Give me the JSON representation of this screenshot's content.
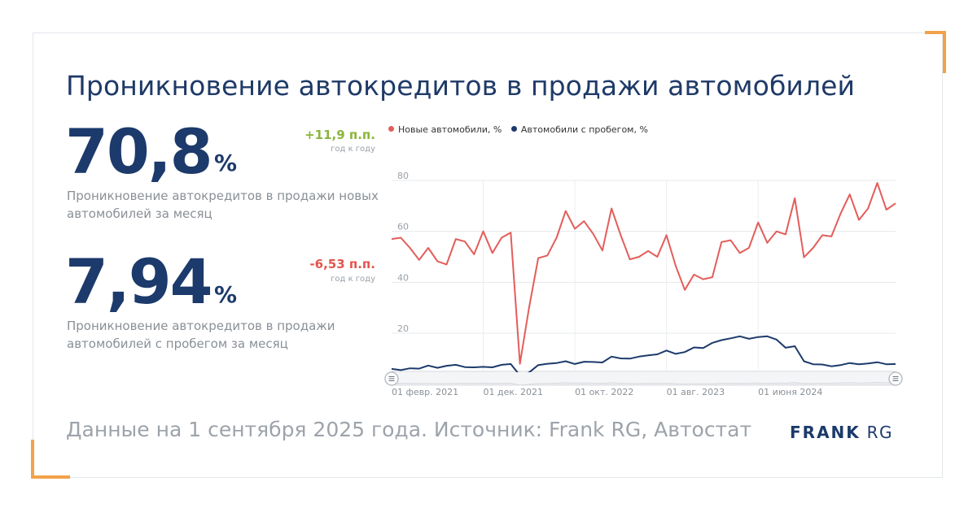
{
  "title": "Проникновение автокредитов в продажи автомобилей",
  "kpis": [
    {
      "value": "70,8",
      "unit": "%",
      "delta": "+11,9 п.п.",
      "delta_color": "#8ab63a",
      "delta_note": "год к году",
      "description": "Проникновение автокредитов в продажи новых автомобилей за месяц"
    },
    {
      "value": "7,94",
      "unit": "%",
      "delta": "-6,53 п.п.",
      "delta_color": "#e0574f",
      "delta_note": "год к году",
      "description": "Проникновение автокредитов в продажи автомобилей с пробегом за месяц"
    }
  ],
  "footer": "Данные на 1 сентября 2025 года. Источник: Frank RG, Автостат",
  "brand": {
    "bold": "FRANK",
    "light": "RG"
  },
  "chart_data": {
    "type": "line",
    "title": "",
    "xlabel": "",
    "ylabel": "",
    "ylim": [
      5,
      80
    ],
    "y_ticks": [
      20,
      40,
      60,
      80
    ],
    "x_tick_labels": [
      "01 февр. 2021",
      "01 дек. 2021",
      "01 окт. 2022",
      "01 авг. 2023",
      "01 июня 2024"
    ],
    "x_tick_indices": [
      0,
      10,
      20,
      30,
      40
    ],
    "grid": true,
    "legend_position": "top-left",
    "has_navigator": true,
    "series": [
      {
        "name": "Новые автомобили, %",
        "color": "#e35d5a",
        "values": [
          57,
          57.5,
          53.5,
          48.8,
          53.5,
          48.2,
          47,
          57,
          56,
          51,
          60,
          51.5,
          57.5,
          59.5,
          8,
          30,
          49.5,
          50.5,
          57.5,
          68,
          61,
          64,
          59,
          52.5,
          69,
          58.5,
          49,
          50,
          52.3,
          50,
          58.5,
          46.5,
          37,
          43,
          41.2,
          42,
          55.8,
          56.5,
          51.5,
          53.5,
          63.5,
          55.5,
          60,
          58.8,
          73,
          49.8,
          53.5,
          58.5,
          58,
          67,
          74.5,
          64.5,
          69,
          79,
          68.5,
          71
        ]
      },
      {
        "name": "Автомобили с пробегом, %",
        "color": "#1c3a6b",
        "values": [
          6,
          5.5,
          6.2,
          6.1,
          7.3,
          6.4,
          7.2,
          7.6,
          6.7,
          6.6,
          6.8,
          6.6,
          7.6,
          7.9,
          3.4,
          4.6,
          7.5,
          8,
          8.3,
          9,
          7.9,
          8.8,
          8.7,
          8.5,
          10.8,
          10.1,
          10,
          10.8,
          11.3,
          11.7,
          13.2,
          11.9,
          12.6,
          14.4,
          14.2,
          16.2,
          17.3,
          18,
          18.8,
          17.8,
          18.5,
          18.8,
          17.5,
          14.3,
          14.9,
          9,
          7.8,
          7.7,
          7,
          7.5,
          8.3,
          7.8,
          8.1,
          8.6,
          7.8,
          7.9
        ]
      }
    ]
  }
}
